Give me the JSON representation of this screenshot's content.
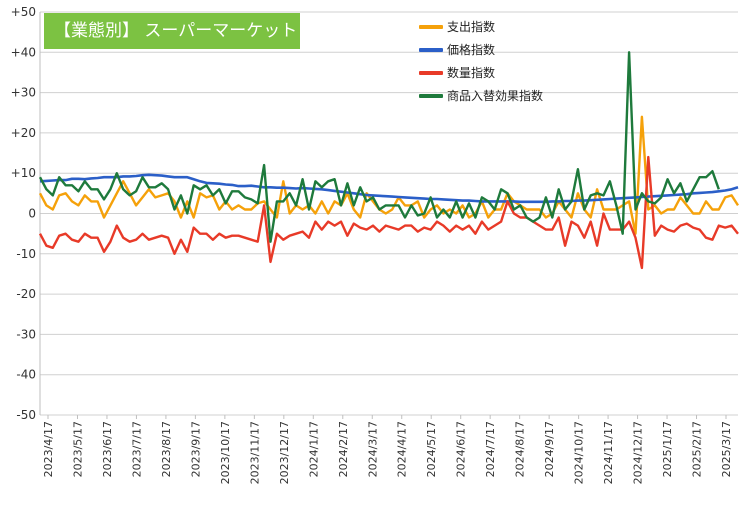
{
  "chart_data": {
    "type": "line",
    "title": "【業態別】 スーパーマーケット",
    "ylim": [
      -50,
      50
    ],
    "y_ticks": [
      "+50",
      "+40",
      "+30",
      "+20",
      "+10",
      "0",
      "-10",
      "-20",
      "-30",
      "-40",
      "-50"
    ],
    "x_tick_labels": [
      "2023/4/17",
      "2023/5/17",
      "2023/6/17",
      "2023/7/17",
      "2023/8/17",
      "2023/9/17",
      "2023/10/17",
      "2023/11/17",
      "2023/12/17",
      "2024/1/17",
      "2024/2/17",
      "2024/3/17",
      "2024/4/17",
      "2024/5/17",
      "2024/6/17",
      "2024/7/17",
      "2024/8/17",
      "2024/9/17",
      "2024/10/17",
      "2024/11/17",
      "2024/12/17",
      "2025/1/17",
      "2025/2/17",
      "2025/3/17"
    ],
    "grid": true,
    "legend_position": "top-right",
    "series": [
      {
        "name": "支出指数",
        "color": "#f5a10a",
        "values": [
          5,
          2,
          1,
          4.5,
          5,
          3,
          2,
          4.5,
          3,
          3,
          -1,
          2,
          5,
          8,
          5,
          2,
          4,
          6,
          4,
          4.5,
          5,
          3,
          -1,
          3,
          -1,
          5,
          4,
          4.5,
          1,
          3,
          1,
          2,
          1,
          1,
          2.5,
          3,
          1,
          -1,
          8,
          0,
          2,
          1,
          2,
          0,
          3,
          0,
          3,
          2,
          5,
          1,
          -1,
          5,
          3,
          1,
          0,
          1,
          4,
          2,
          2,
          3,
          -1,
          1,
          2,
          0,
          1,
          0,
          2,
          -1,
          0,
          3,
          -1,
          1,
          1,
          5,
          3,
          2,
          1,
          1,
          1,
          -1,
          0,
          3,
          1,
          -1,
          5,
          1,
          -1,
          6,
          1,
          1,
          1,
          2,
          3,
          -5,
          24,
          1,
          2,
          0,
          1,
          1,
          4,
          2,
          0,
          0,
          3,
          1,
          1,
          4,
          4.5,
          2
        ]
      },
      {
        "name": "価格指数",
        "color": "#2b5fc8",
        "values": [
          8,
          8.1,
          8.2,
          8.3,
          8.3,
          8.6,
          8.6,
          8.5,
          8.7,
          8.8,
          9,
          9,
          9,
          9.2,
          9.2,
          9.3,
          9.5,
          9.6,
          9.5,
          9.4,
          9.2,
          9,
          9,
          9,
          8.5,
          8,
          7.6,
          7.5,
          7.4,
          7.2,
          7.1,
          6.8,
          6.8,
          6.9,
          6.7,
          6.5,
          6.5,
          6.4,
          6.4,
          6.3,
          6.2,
          6.3,
          6.2,
          6.1,
          6.0,
          5.8,
          5.6,
          5.4,
          5.2,
          5,
          4.8,
          4.6,
          4.5,
          4.4,
          4.3,
          4.2,
          4.1,
          4,
          3.9,
          3.8,
          3.7,
          3.6,
          3.6,
          3.5,
          3.4,
          3.3,
          3.2,
          3.2,
          3.1,
          3,
          3,
          3,
          3,
          3,
          3,
          2.9,
          2.9,
          2.9,
          2.9,
          2.9,
          3,
          3,
          3.1,
          3.1,
          3.2,
          3.2,
          3.3,
          3.4,
          3.5,
          3.6,
          3.7,
          3.8,
          3.9,
          4,
          4.1,
          4.2,
          4.3,
          4.4,
          4.5,
          4.6,
          4.7,
          4.8,
          5,
          5.1,
          5.2,
          5.3,
          5.5,
          5.7,
          6,
          6.5
        ]
      },
      {
        "name": "数量指数",
        "color": "#e83a28",
        "values": [
          -5,
          -8,
          -8.5,
          -5.5,
          -5,
          -6.5,
          -7,
          -5,
          -6,
          -6,
          -9.5,
          -7,
          -3,
          -6,
          -7,
          -6.5,
          -5,
          -6.5,
          -6,
          -5.5,
          -6,
          -10,
          -6.5,
          -9.5,
          -3.5,
          -5,
          -5,
          -6.5,
          -5,
          -6,
          -5.5,
          -5.5,
          -6,
          -6.5,
          -7,
          2,
          -12,
          -5,
          -6.5,
          -5.5,
          -5,
          -4.5,
          -6,
          -2,
          -4,
          -2,
          -3,
          -2,
          -5.5,
          -2.5,
          -3.5,
          -4,
          -3,
          -4.5,
          -3,
          -3.5,
          -4,
          -3,
          -3,
          -4.5,
          -3.5,
          -4,
          -2,
          -3,
          -4.5,
          -3,
          -4,
          -3,
          -5,
          -2,
          -4,
          -3,
          -2,
          3,
          0,
          -1,
          -1,
          -2,
          -3,
          -4,
          -4,
          -1,
          -8,
          -2,
          -3,
          -6,
          -2,
          -8,
          0,
          -4,
          -4,
          -4,
          -2,
          -6,
          -13.5,
          14,
          -5.5,
          -3,
          -4,
          -4.5,
          -3,
          -2.5,
          -3.5,
          -4,
          -6,
          -6.5,
          -3,
          -3.5,
          -3,
          -5
        ]
      },
      {
        "name": "商品入替効果指数",
        "color": "#1e7a3c",
        "values": [
          9,
          6,
          4.5,
          9,
          7,
          7,
          5.5,
          8,
          6,
          6,
          3.5,
          6,
          10,
          6,
          4.5,
          5.5,
          9,
          6.5,
          6.5,
          7.5,
          6,
          1,
          4.5,
          0,
          7,
          6,
          7,
          4.5,
          6,
          2.5,
          5.5,
          5.5,
          4,
          3.5,
          2.5,
          12,
          -7,
          3,
          3,
          5,
          2,
          8.5,
          1,
          8,
          6.5,
          8,
          8.5,
          2,
          7.5,
          2,
          6.5,
          3,
          4,
          1,
          2,
          2,
          2,
          -1,
          2,
          -0.5,
          0,
          4,
          -1,
          1,
          -1,
          3,
          -1,
          2.5,
          -1,
          4,
          3,
          1,
          6,
          5,
          1,
          2,
          -1,
          -2,
          -1,
          4,
          -1,
          6,
          1,
          3,
          11,
          1,
          4.5,
          5,
          4.5,
          8,
          2,
          -5,
          40,
          1,
          5,
          3,
          2.5,
          4,
          8.5,
          5,
          7.5,
          3,
          6,
          9,
          9,
          10.5,
          6
        ]
      }
    ]
  }
}
